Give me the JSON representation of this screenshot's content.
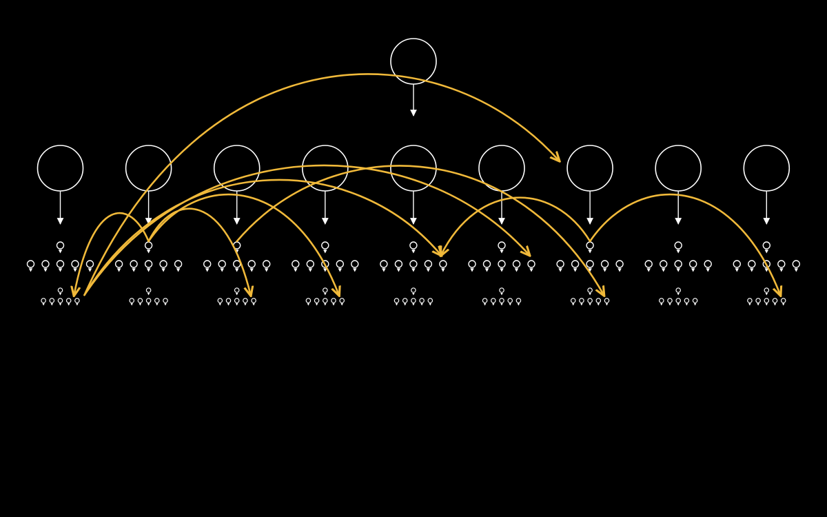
{
  "diagram": {
    "background": "#000000",
    "node_color": "#ffffff",
    "arc_color": "#f0b93a",
    "root": {
      "name": "root-node"
    },
    "groups": [
      {
        "id": 0
      },
      {
        "id": 1
      },
      {
        "id": 2
      },
      {
        "id": 3
      },
      {
        "id": 4
      },
      {
        "id": 5
      },
      {
        "id": 6
      },
      {
        "id": 7
      },
      {
        "id": 8
      }
    ],
    "subnodes_per_row": 5,
    "cross_links": [
      {
        "from": 0,
        "from_level": "leaf",
        "to": 6,
        "to_level": "group"
      },
      {
        "from": 0,
        "from_level": "leaf",
        "to": 4,
        "to_level": "sub"
      },
      {
        "from": 0,
        "from_level": "leaf",
        "to": 5,
        "to_level": "sub"
      },
      {
        "from": 1,
        "from_level": "sub",
        "to": 0,
        "to_level": "leaf"
      },
      {
        "from": 1,
        "from_level": "sub",
        "to": 2,
        "to_level": "leaf"
      },
      {
        "from": 1,
        "from_level": "sub",
        "to": 3,
        "to_level": "leaf"
      },
      {
        "from": 2,
        "from_level": "sub",
        "to": 6,
        "to_level": "leaf"
      },
      {
        "from": 6,
        "from_level": "sub",
        "to": 4,
        "to_level": "sub"
      },
      {
        "from": 6,
        "from_level": "sub",
        "to": 8,
        "to_level": "leaf"
      }
    ]
  }
}
